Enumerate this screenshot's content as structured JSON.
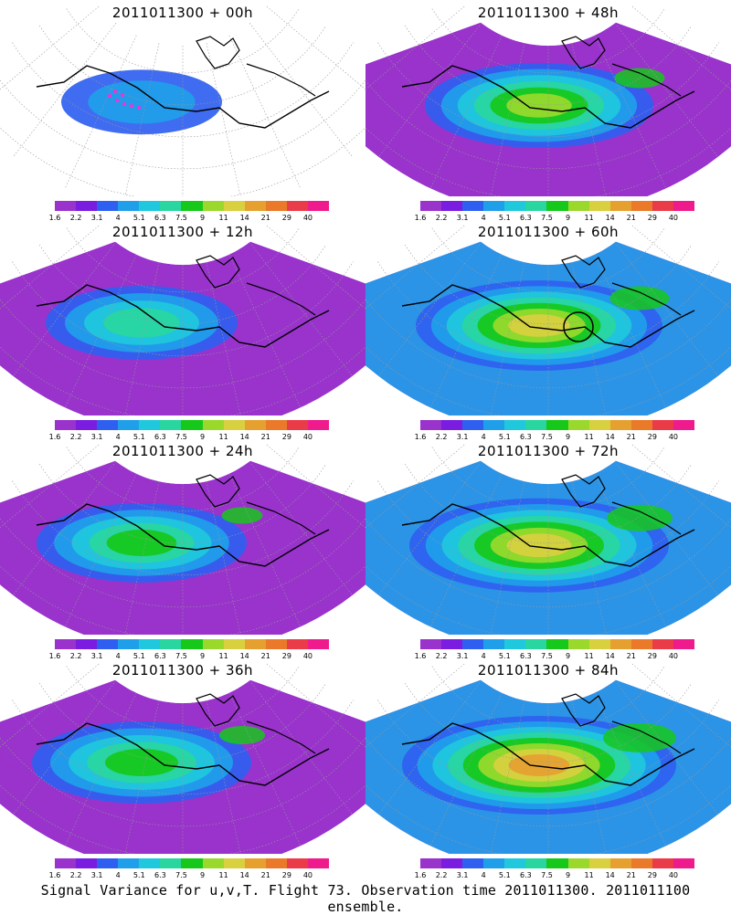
{
  "colors": {
    "scale": [
      "#9933cc",
      "#7a1de0",
      "#2f5ff0",
      "#1f9fea",
      "#1fc8dc",
      "#29d6a0",
      "#16c81a",
      "#9ad92c",
      "#d9d040",
      "#e6a030",
      "#ea7a2a",
      "#ea3c48",
      "#ef1a8c"
    ],
    "land_outline": "#000000",
    "grid": "#999999"
  },
  "colorbar_labels": [
    "1.6",
    "2.2",
    "3.1",
    "4",
    "5.1",
    "6.3",
    "7.5",
    "9",
    "11",
    "14",
    "21",
    "29",
    "40"
  ],
  "panels": [
    {
      "title": "2011011300 + 00h",
      "level": 0.18,
      "marker": "obs-points"
    },
    {
      "title": "2011011300 + 48h",
      "level": 0.55,
      "marker": ""
    },
    {
      "title": "2011011300 + 12h",
      "level": 0.35,
      "marker": ""
    },
    {
      "title": "2011011300 + 60h",
      "level": 0.65,
      "marker": "circle"
    },
    {
      "title": "2011011300 + 24h",
      "level": 0.45,
      "marker": ""
    },
    {
      "title": "2011011300 + 72h",
      "level": 0.72,
      "marker": ""
    },
    {
      "title": "2011011300 + 36h",
      "level": 0.5,
      "marker": ""
    },
    {
      "title": "2011011300 + 84h",
      "level": 0.8,
      "marker": ""
    }
  ],
  "footer": "Signal Variance for u,v,T. Flight 73. Observation time 2011011300. 2011011100 ensemble."
}
